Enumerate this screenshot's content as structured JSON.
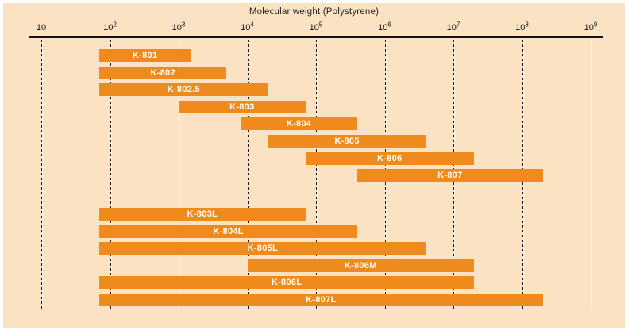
{
  "chart_data": {
    "type": "bar",
    "subtype": "horizontal-range-bars",
    "title": "Molecular weight (Polystyrene)",
    "xscale": "log",
    "xlim": [
      10,
      1000000000
    ],
    "grid": "dashed-vertical-per-decade",
    "legend": "none",
    "axis": {
      "ticks": [
        "10",
        "10^2",
        "10^3",
        "10^4",
        "10^5",
        "10^6",
        "10^7",
        "10^8",
        "10^9"
      ]
    },
    "series": [
      {
        "label": "K-801",
        "group": 1,
        "range": [
          70,
          1500
        ]
      },
      {
        "label": "K-802",
        "group": 1,
        "range": [
          70,
          5000
        ]
      },
      {
        "label": "K-802.5",
        "group": 1,
        "range": [
          70,
          20000
        ]
      },
      {
        "label": "K-803",
        "group": 1,
        "range": [
          1000,
          70000
        ]
      },
      {
        "label": "K-804",
        "group": 1,
        "range": [
          8000,
          400000
        ]
      },
      {
        "label": "K-805",
        "group": 1,
        "range": [
          20000,
          4000000
        ]
      },
      {
        "label": "K-806",
        "group": 1,
        "range": [
          70000,
          20000000
        ]
      },
      {
        "label": "K-807",
        "group": 1,
        "range": [
          400000,
          200000000
        ]
      },
      {
        "label": "K-803L",
        "group": 2,
        "range": [
          70,
          70000
        ]
      },
      {
        "label": "K-804L",
        "group": 2,
        "range": [
          70,
          400000
        ]
      },
      {
        "label": "K-805L",
        "group": 2,
        "range": [
          70,
          4000000
        ]
      },
      {
        "label": "K-806M",
        "group": 2,
        "range": [
          10000,
          20000000
        ]
      },
      {
        "label": "K-806L",
        "group": 2,
        "range": [
          70,
          20000000
        ]
      },
      {
        "label": "K-807L",
        "group": 2,
        "range": [
          70,
          200000000
        ]
      }
    ],
    "colors": {
      "bar": "#ee8b1c",
      "bar_label": "#ffffff",
      "background": "#fae2c2",
      "frame_border": "#ffffff",
      "axis_text": "#111111",
      "gridline": "#141414"
    }
  }
}
